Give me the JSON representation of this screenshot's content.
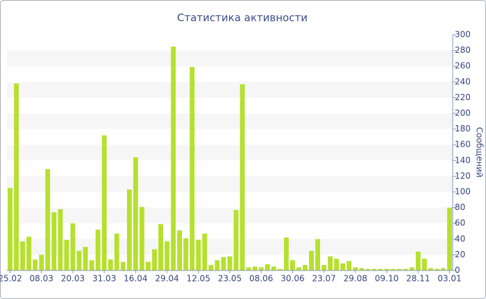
{
  "chart_data": {
    "type": "bar",
    "title": "Статистика активности",
    "y_label": "Сообщений",
    "categories": [
      "25.02",
      null,
      null,
      null,
      null,
      "08.03",
      null,
      null,
      null,
      null,
      "20.03",
      null,
      null,
      null,
      null,
      "31.03",
      null,
      null,
      null,
      null,
      "16.04",
      null,
      null,
      null,
      null,
      "29.04",
      null,
      null,
      null,
      null,
      "12.05",
      null,
      null,
      null,
      null,
      "23.05",
      null,
      null,
      null,
      null,
      "08.06",
      null,
      null,
      null,
      null,
      "30.06",
      null,
      null,
      null,
      null,
      "23.07",
      null,
      null,
      null,
      null,
      "29.08",
      null,
      null,
      null,
      null,
      "09.10",
      null,
      null,
      null,
      null,
      "28.11",
      null,
      null,
      null,
      null,
      "03.01"
    ],
    "values": [
      105,
      238,
      37,
      43,
      14,
      20,
      129,
      74,
      78,
      39,
      60,
      25,
      30,
      13,
      52,
      172,
      14,
      47,
      11,
      103,
      144,
      81,
      11,
      27,
      59,
      37,
      285,
      51,
      41,
      259,
      39,
      47,
      7,
      13,
      17,
      18,
      77,
      237,
      4,
      5,
      4,
      8,
      5,
      2,
      42,
      13,
      4,
      7,
      25,
      40,
      7,
      18,
      15,
      9,
      12,
      4,
      3,
      2,
      2,
      2,
      2,
      2,
      2,
      2,
      4,
      24,
      15,
      3,
      2,
      3,
      80
    ],
    "color": "#b6e02e",
    "ylim": [
      0,
      300
    ],
    "yticks": [
      0,
      20,
      40,
      60,
      80,
      100,
      120,
      140,
      160,
      180,
      200,
      220,
      240,
      260,
      280,
      300
    ],
    "grid": true,
    "y_axis_side": "right"
  }
}
